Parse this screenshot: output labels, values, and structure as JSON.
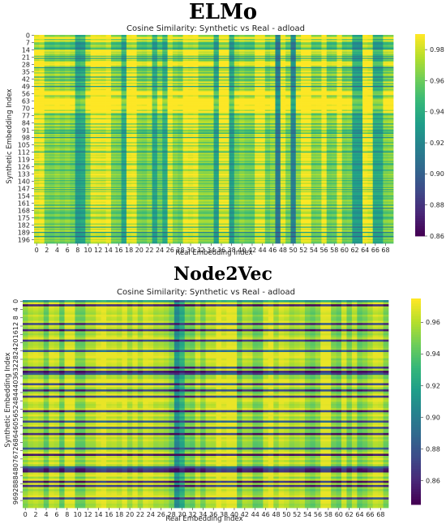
{
  "chart_data": [
    {
      "type": "heatmap",
      "heading": "ELMo",
      "title": "Cosine Similarity: Synthetic vs Real - adload",
      "xlabel": "Real Embedding Index",
      "ylabel": "Synthetic Embedding Index",
      "n_cols": 70,
      "n_rows": 200,
      "xticks": [
        "0",
        "2",
        "4",
        "6",
        "8",
        "10",
        "12",
        "14",
        "16",
        "18",
        "20",
        "22",
        "24",
        "26",
        "28",
        "30",
        "32",
        "34",
        "36",
        "38",
        "40",
        "42",
        "44",
        "46",
        "48",
        "50",
        "52",
        "54",
        "56",
        "58",
        "60",
        "62",
        "64",
        "66",
        "68"
      ],
      "yticks": [
        "0",
        "7",
        "14",
        "21",
        "28",
        "35",
        "42",
        "49",
        "56",
        "63",
        "70",
        "77",
        "84",
        "91",
        "98",
        "105",
        "112",
        "119",
        "126",
        "133",
        "140",
        "147",
        "154",
        "161",
        "168",
        "175",
        "182",
        "189",
        "196"
      ],
      "colorbar": {
        "min": 0.86,
        "max": 0.99,
        "ticks": [
          "0.86",
          "0.88",
          "0.90",
          "0.92",
          "0.94",
          "0.96",
          "0.98"
        ]
      },
      "colormap": "viridis",
      "value_range": [
        0.86,
        0.99
      ]
    },
    {
      "type": "heatmap",
      "heading": "Node2Vec",
      "title": "Cosine Similarity: Synthetic vs Real - adload",
      "xlabel": "Real Embedding Index",
      "ylabel": "Synthetic Embedding Index",
      "n_cols": 70,
      "n_rows": 100,
      "xticks": [
        "0",
        "2",
        "4",
        "6",
        "8",
        "10",
        "12",
        "14",
        "16",
        "18",
        "20",
        "22",
        "24",
        "26",
        "28",
        "30",
        "32",
        "34",
        "36",
        "38",
        "40",
        "42",
        "44",
        "46",
        "48",
        "50",
        "52",
        "54",
        "56",
        "58",
        "60",
        "62",
        "64",
        "66",
        "68"
      ],
      "yticks": [
        "0",
        "4",
        "8",
        "12",
        "16",
        "20",
        "24",
        "28",
        "32",
        "36",
        "40",
        "44",
        "48",
        "52",
        "56",
        "60",
        "64",
        "68",
        "72",
        "76",
        "80",
        "84",
        "88",
        "92",
        "96"
      ],
      "colorbar": {
        "min": 0.845,
        "max": 0.975,
        "ticks": [
          "0.86",
          "0.88",
          "0.90",
          "0.92",
          "0.94",
          "0.96"
        ]
      },
      "colormap": "viridis",
      "value_range": [
        0.845,
        0.975
      ]
    }
  ]
}
